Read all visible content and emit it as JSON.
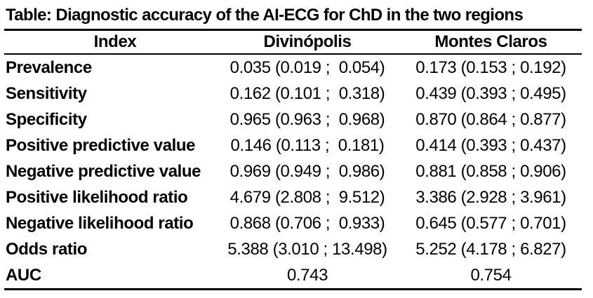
{
  "table": {
    "title": "Table: Diagnostic accuracy of the AI-ECG for ChD in the two regions",
    "columns": [
      "Index",
      "Divinópolis",
      "Montes Claros"
    ],
    "rows": [
      {
        "label": "Prevalence",
        "divinopolis": "0.035 (0.019 ;  0.054)",
        "montes_claros": "0.173 (0.153 ; 0.192)"
      },
      {
        "label": "Sensitivity",
        "divinopolis": "0.162 (0.101 ;  0.318)",
        "montes_claros": "0.439 (0.393 ; 0.495)"
      },
      {
        "label": "Specificity",
        "divinopolis": "0.965 (0.963 ;  0.968)",
        "montes_claros": "0.870 (0.864 ; 0.877)"
      },
      {
        "label": "Positive predictive value",
        "divinopolis": "0.146 (0.113 ;  0.181)",
        "montes_claros": "0.414 (0.393 ; 0.437)"
      },
      {
        "label": "Negative predictive value",
        "divinopolis": "0.969 (0.949 ;  0.986)",
        "montes_claros": "0.881 (0.858 ; 0.906)"
      },
      {
        "label": "Positive likelihood ratio",
        "divinopolis": "4.679 (2.808 ;  9.512)",
        "montes_claros": "3.386 (2.928 ; 3.961)"
      },
      {
        "label": "Negative likelihood ratio",
        "divinopolis": "0.868 (0.706 ;  0.933)",
        "montes_claros": "0.645 (0.577 ; 0.701)"
      },
      {
        "label": "Odds ratio",
        "divinopolis": "5.388 (3.010 ; 13.498)",
        "montes_claros": "5.252 (4.178 ; 6.827)"
      },
      {
        "label": "AUC",
        "divinopolis": "0.743",
        "montes_claros": "0.754"
      }
    ]
  },
  "chart_data": {
    "type": "table",
    "title": "Table: Diagnostic accuracy of the AI-ECG for ChD in the two regions",
    "columns": [
      "Index",
      "Divinópolis",
      "Montes Claros"
    ],
    "series": [
      {
        "name": "Divinópolis",
        "values": [
          {
            "index": "Prevalence",
            "estimate": 0.035,
            "ci_low": 0.019,
            "ci_high": 0.054
          },
          {
            "index": "Sensitivity",
            "estimate": 0.162,
            "ci_low": 0.101,
            "ci_high": 0.318
          },
          {
            "index": "Specificity",
            "estimate": 0.965,
            "ci_low": 0.963,
            "ci_high": 0.968
          },
          {
            "index": "Positive predictive value",
            "estimate": 0.146,
            "ci_low": 0.113,
            "ci_high": 0.181
          },
          {
            "index": "Negative predictive value",
            "estimate": 0.969,
            "ci_low": 0.949,
            "ci_high": 0.986
          },
          {
            "index": "Positive likelihood ratio",
            "estimate": 4.679,
            "ci_low": 2.808,
            "ci_high": 9.512
          },
          {
            "index": "Negative likelihood ratio",
            "estimate": 0.868,
            "ci_low": 0.706,
            "ci_high": 0.933
          },
          {
            "index": "Odds ratio",
            "estimate": 5.388,
            "ci_low": 3.01,
            "ci_high": 13.498
          },
          {
            "index": "AUC",
            "estimate": 0.743
          }
        ]
      },
      {
        "name": "Montes Claros",
        "values": [
          {
            "index": "Prevalence",
            "estimate": 0.173,
            "ci_low": 0.153,
            "ci_high": 0.192
          },
          {
            "index": "Sensitivity",
            "estimate": 0.439,
            "ci_low": 0.393,
            "ci_high": 0.495
          },
          {
            "index": "Specificity",
            "estimate": 0.87,
            "ci_low": 0.864,
            "ci_high": 0.877
          },
          {
            "index": "Positive predictive value",
            "estimate": 0.414,
            "ci_low": 0.393,
            "ci_high": 0.437
          },
          {
            "index": "Negative predictive value",
            "estimate": 0.881,
            "ci_low": 0.858,
            "ci_high": 0.906
          },
          {
            "index": "Positive likelihood ratio",
            "estimate": 3.386,
            "ci_low": 2.928,
            "ci_high": 3.961
          },
          {
            "index": "Negative likelihood ratio",
            "estimate": 0.645,
            "ci_low": 0.577,
            "ci_high": 0.701
          },
          {
            "index": "Odds ratio",
            "estimate": 5.252,
            "ci_low": 4.178,
            "ci_high": 6.827
          },
          {
            "index": "AUC",
            "estimate": 0.754
          }
        ]
      }
    ]
  },
  "colors": {
    "background": "#ffffff",
    "text": "#000000",
    "rule": "#000000"
  }
}
